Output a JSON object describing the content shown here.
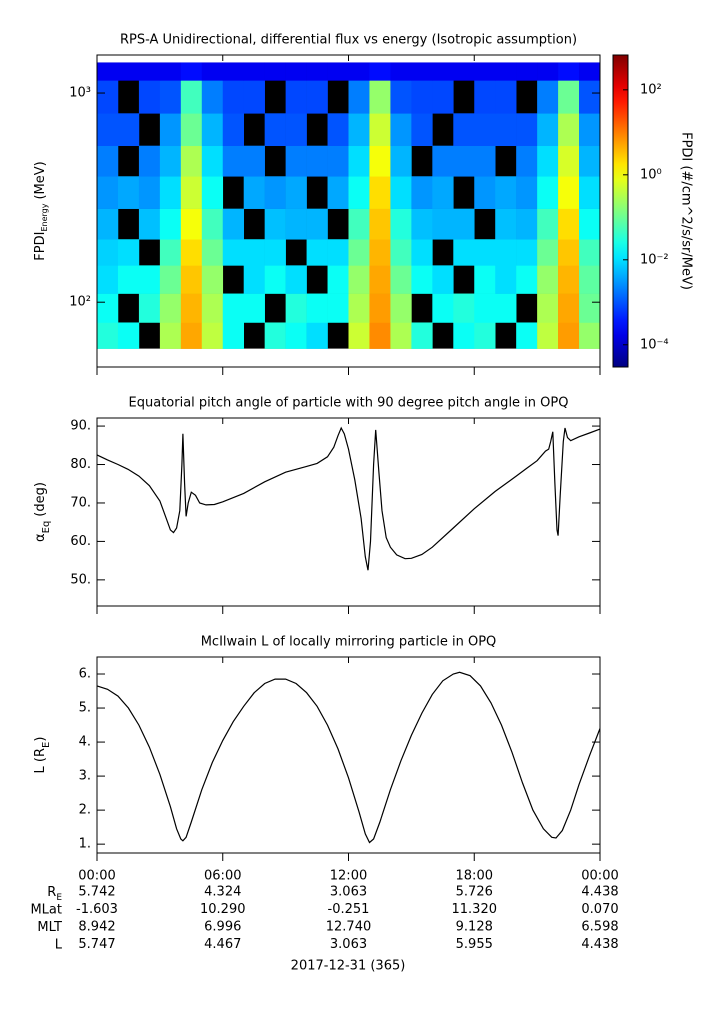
{
  "chart_data": [
    {
      "type": "heatmap",
      "title": "RPS-A Unidirectional, differential flux vs energy (Isotropic assumption)",
      "ylabel": [
        "FPDI",
        "Energy",
        "(MeV)"
      ],
      "clabel": "FPDI (#/cm^2/s/sr/MeV)",
      "yscale": "log",
      "ylim": [
        49,
        1520
      ],
      "yticks": [
        {
          "value": 100,
          "label": "10²"
        },
        {
          "value": 1000,
          "label": "10³"
        }
      ],
      "xlim": [
        0,
        24
      ],
      "xticks": [
        0,
        6,
        12,
        18,
        24
      ],
      "cscale": "log",
      "clim": [
        3e-05,
        660
      ],
      "cticks": [
        {
          "value": 0.0001,
          "label": "10⁻⁴"
        },
        {
          "value": 0.01,
          "label": "10⁻²"
        },
        {
          "value": 1,
          "label": "10⁰"
        },
        {
          "value": 100,
          "label": "10²"
        }
      ],
      "x_bins": [
        0,
        1,
        2,
        3,
        4,
        5,
        6,
        7,
        8,
        9,
        10,
        11,
        12,
        13,
        14,
        15,
        16,
        17,
        18,
        19,
        20,
        21,
        22,
        23,
        24
      ],
      "y_bins": [
        60,
        80,
        110,
        150,
        200,
        280,
        400,
        560,
        800,
        1150,
        1400
      ],
      "z": [
        [
          0.03,
          0.02,
          null,
          0.3,
          5,
          0.4,
          0.02,
          null,
          0.03,
          0.02,
          0.01,
          null,
          0.5,
          8,
          0.3,
          0.03,
          null,
          0.02,
          0.03,
          null,
          0.02,
          0.4,
          6,
          0.2
        ],
        [
          0.02,
          null,
          0.03,
          0.2,
          4,
          0.3,
          0.02,
          0.02,
          null,
          0.03,
          0.02,
          0.02,
          0.3,
          6,
          0.2,
          null,
          0.02,
          0.03,
          0.02,
          0.02,
          null,
          0.3,
          5,
          0.1
        ],
        [
          0.01,
          0.02,
          0.02,
          0.1,
          3,
          0.2,
          null,
          0.01,
          0.02,
          0.01,
          null,
          0.02,
          0.2,
          5,
          0.1,
          0.02,
          0.01,
          null,
          0.02,
          0.01,
          0.02,
          0.2,
          4,
          0.08
        ],
        [
          0.008,
          0.01,
          null,
          0.05,
          2,
          0.1,
          0.01,
          0.01,
          0.01,
          null,
          0.01,
          0.01,
          0.1,
          4,
          0.05,
          0.01,
          null,
          0.01,
          0.01,
          0.01,
          0.01,
          0.1,
          3,
          0.05
        ],
        [
          0.005,
          null,
          0.006,
          0.02,
          1,
          0.05,
          0.005,
          null,
          0.006,
          0.005,
          0.005,
          null,
          0.05,
          3,
          0.03,
          0.006,
          0.005,
          0.005,
          null,
          0.006,
          0.005,
          0.05,
          2,
          0.02
        ],
        [
          0.003,
          0.004,
          0.003,
          0.01,
          0.5,
          0.02,
          null,
          0.004,
          0.003,
          0.004,
          null,
          0.004,
          0.02,
          2,
          0.01,
          0.003,
          0.004,
          null,
          0.003,
          0.004,
          0.003,
          0.02,
          1,
          0.01
        ],
        [
          0.002,
          null,
          0.002,
          0.005,
          0.3,
          0.01,
          0.002,
          0.002,
          null,
          0.002,
          0.002,
          0.002,
          0.01,
          1,
          0.005,
          null,
          0.002,
          0.002,
          0.002,
          null,
          0.002,
          0.01,
          0.6,
          0.005
        ],
        [
          0.001,
          0.001,
          null,
          0.003,
          0.1,
          0.005,
          0.001,
          null,
          0.001,
          0.001,
          null,
          0.001,
          0.005,
          0.5,
          0.003,
          0.001,
          null,
          0.001,
          0.001,
          0.001,
          0.001,
          0.005,
          0.3,
          0.003
        ],
        [
          0.0008,
          null,
          0.0008,
          0.001,
          0.05,
          0.002,
          0.0008,
          0.0008,
          null,
          0.0008,
          0.0008,
          null,
          0.002,
          0.2,
          0.001,
          0.0008,
          0.0008,
          null,
          0.0008,
          0.0008,
          null,
          0.002,
          0.1,
          0.001
        ],
        [
          0.0002,
          0.0002,
          0.0002,
          0.0002,
          0.0003,
          0.0002,
          0.0002,
          0.0002,
          0.0002,
          0.0002,
          0.0002,
          0.0002,
          0.0002,
          0.0003,
          0.0002,
          0.0002,
          0.0002,
          0.0002,
          0.0002,
          0.0002,
          0.0002,
          0.0002,
          0.0003,
          0.0002
        ]
      ]
    },
    {
      "type": "line",
      "title": "Equatorial pitch angle of particle with 90 degree pitch angle in OPQ",
      "ylabel": [
        "α",
        "Eq",
        "(deg)"
      ],
      "color": "#000000",
      "xlim": [
        0,
        24
      ],
      "xticks": [
        0,
        6,
        12,
        18,
        24
      ],
      "ylim": [
        43.2,
        92.1
      ],
      "yticks": [
        {
          "value": 50,
          "label": "50."
        },
        {
          "value": 60,
          "label": "60."
        },
        {
          "value": 70,
          "label": "70."
        },
        {
          "value": 80,
          "label": "80."
        },
        {
          "value": 90,
          "label": "90."
        }
      ],
      "x": [
        0,
        0.5,
        1,
        1.5,
        2,
        2.5,
        3,
        3.3,
        3.5,
        3.65,
        3.8,
        3.95,
        4.05,
        4.1,
        4.18,
        4.25,
        4.35,
        4.5,
        4.7,
        4.9,
        5.2,
        5.6,
        6,
        7,
        8,
        9,
        10,
        10.5,
        11,
        11.3,
        11.5,
        11.65,
        11.8,
        12,
        12.3,
        12.6,
        12.8,
        12.93,
        13.05,
        13.2,
        13.3,
        13.45,
        13.6,
        13.8,
        14,
        14.3,
        14.7,
        15,
        15.5,
        16,
        17,
        18,
        19,
        20,
        20.5,
        21,
        21.4,
        21.55,
        21.65,
        21.75,
        21.85,
        21.95,
        22,
        22.1,
        22.25,
        22.33,
        22.45,
        22.6,
        23,
        23.5,
        24
      ],
      "values": [
        82.5,
        81.2,
        80,
        78.7,
        77,
        74.5,
        70.5,
        66,
        63,
        62.3,
        63.5,
        68,
        80,
        88,
        75,
        66.5,
        70,
        72.8,
        72,
        70,
        69.5,
        69.6,
        70.3,
        72.5,
        75.5,
        78,
        79.5,
        80.3,
        82,
        84.5,
        87.5,
        89.5,
        88,
        84,
        76,
        66,
        56,
        52.5,
        60,
        80,
        89,
        78,
        68,
        61,
        58.5,
        56.5,
        55.5,
        55.6,
        56.6,
        58.5,
        63.5,
        68.5,
        73,
        77,
        79,
        81,
        83.5,
        84,
        86,
        88.5,
        75,
        63,
        61.5,
        72,
        86,
        89.5,
        87,
        86.2,
        87.2,
        88.2,
        89.2
      ]
    },
    {
      "type": "line",
      "title": "McIlwain L of locally mirroring particle in OPQ",
      "ylabel": [
        "L (R",
        "E",
        ")"
      ],
      "color": "#000000",
      "xlim": [
        0,
        24
      ],
      "xticks": [
        {
          "value": 0,
          "label": "00:00"
        },
        {
          "value": 6,
          "label": "06:00"
        },
        {
          "value": 12,
          "label": "12:00"
        },
        {
          "value": 18,
          "label": "18:00"
        },
        {
          "value": 24,
          "label": "00:00"
        }
      ],
      "ylim": [
        0.74,
        6.5
      ],
      "yticks": [
        {
          "value": 1,
          "label": "1."
        },
        {
          "value": 2,
          "label": "2."
        },
        {
          "value": 3,
          "label": "3."
        },
        {
          "value": 4,
          "label": "4."
        },
        {
          "value": 5,
          "label": "5."
        },
        {
          "value": 6,
          "label": "6."
        }
      ],
      "x": [
        0,
        0.5,
        1,
        1.5,
        2,
        2.5,
        3,
        3.5,
        3.8,
        4,
        4.1,
        4.25,
        4.5,
        5,
        5.5,
        6,
        6.5,
        7,
        7.5,
        8,
        8.5,
        9,
        9.5,
        10,
        10.5,
        11,
        11.5,
        12,
        12.5,
        12.8,
        13,
        13.2,
        13.5,
        14,
        14.5,
        15,
        15.5,
        16,
        16.5,
        17,
        17.3,
        17.8,
        18.3,
        18.8,
        19.3,
        19.8,
        20.3,
        20.8,
        21.3,
        21.7,
        21.9,
        22.2,
        22.6,
        23,
        23.5,
        24
      ],
      "values": [
        5.65,
        5.55,
        5.35,
        5,
        4.5,
        3.85,
        3.05,
        2.1,
        1.45,
        1.15,
        1.1,
        1.2,
        1.65,
        2.6,
        3.4,
        4.05,
        4.6,
        5.05,
        5.45,
        5.72,
        5.85,
        5.85,
        5.72,
        5.45,
        5.05,
        4.5,
        3.8,
        2.95,
        1.95,
        1.3,
        1.05,
        1.15,
        1.65,
        2.6,
        3.45,
        4.2,
        4.85,
        5.4,
        5.8,
        6,
        6.05,
        5.95,
        5.65,
        5.15,
        4.5,
        3.7,
        2.8,
        2,
        1.45,
        1.2,
        1.18,
        1.4,
        2,
        2.75,
        3.6,
        4.4
      ]
    }
  ],
  "ephemeris": {
    "rows": [
      {
        "label": [
          "R",
          "E"
        ],
        "values": [
          "5.742",
          "4.324",
          "3.063",
          "5.726",
          "4.438"
        ]
      },
      {
        "label": [
          "MLat"
        ],
        "values": [
          "-1.603",
          "10.290",
          "-0.251",
          "11.320",
          "0.070"
        ]
      },
      {
        "label": [
          "MLT"
        ],
        "values": [
          "8.942",
          "6.996",
          "12.740",
          "9.128",
          "6.598"
        ]
      },
      {
        "label": [
          "L"
        ],
        "values": [
          "5.747",
          "4.467",
          "3.063",
          "5.955",
          "4.438"
        ]
      }
    ],
    "date": "2017-12-31 (365)"
  }
}
